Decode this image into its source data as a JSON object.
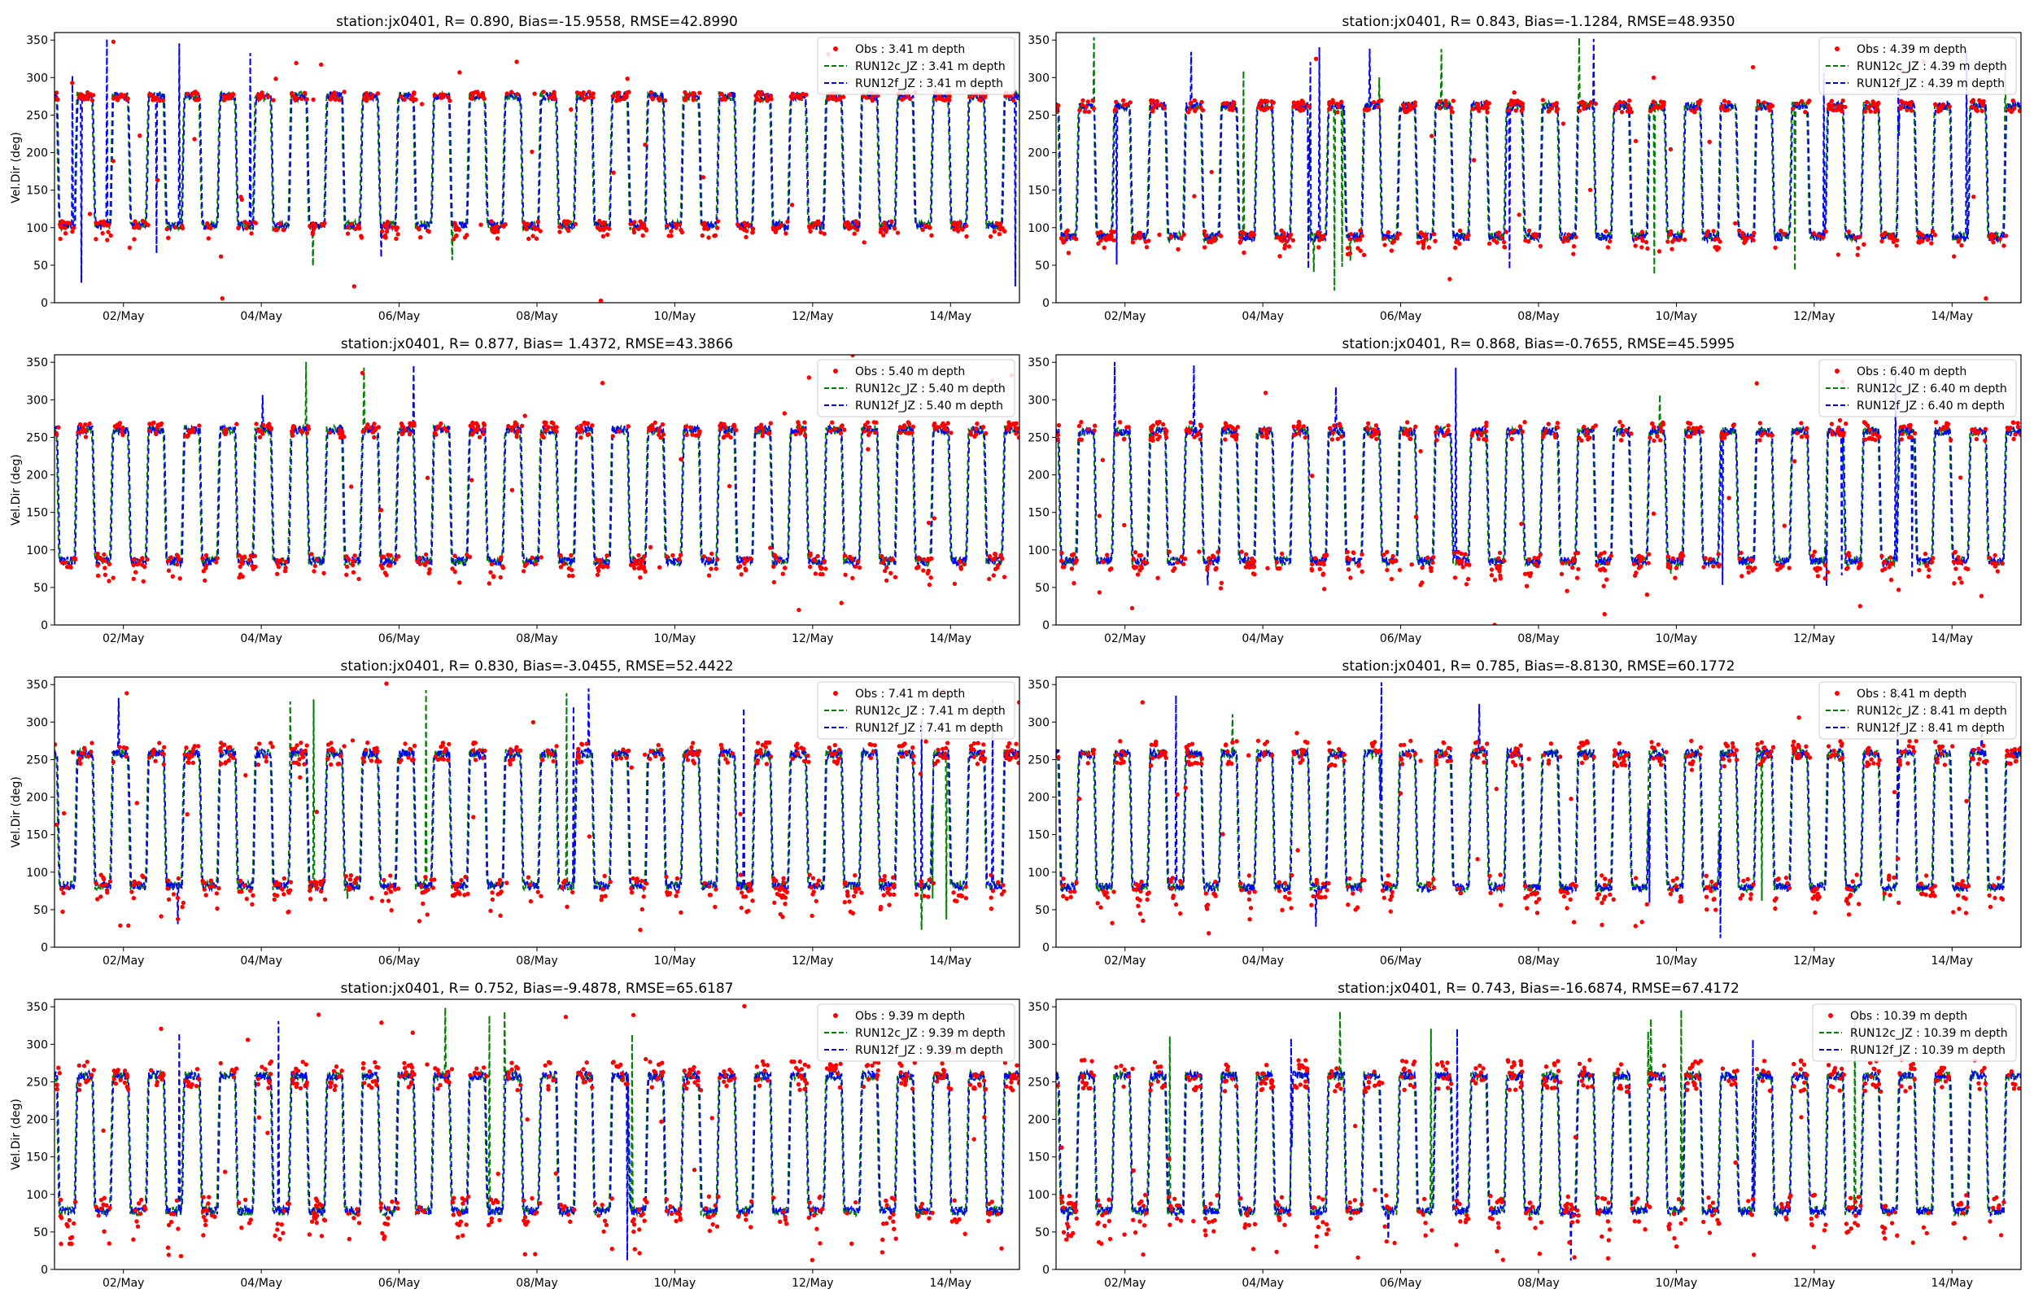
{
  "figure": {
    "background": "#ffffff"
  },
  "colors": {
    "obs": "#ff0000",
    "run12c": "#008000",
    "run12f": "#0000ff",
    "axis": "#000000"
  },
  "chart_data": [
    {
      "type": "line",
      "title": "station:jx0401, R= 0.890, Bias=-15.9558, RMSE=42.8990",
      "ylabel": "Vel.Dir (deg)",
      "xlabel": "",
      "xticks": [
        "02/May",
        "04/May",
        "06/May",
        "08/May",
        "10/May",
        "12/May",
        "14/May"
      ],
      "yticks": [
        0,
        50,
        100,
        150,
        200,
        250,
        300,
        350
      ],
      "x_range_days": [
        1.0,
        15.0
      ],
      "ylim": [
        0,
        360
      ],
      "legend_position": "top-right",
      "grid": false,
      "series": [
        {
          "name": "Obs : 3.41 m depth",
          "kind": "dots"
        },
        {
          "name": "RUN12c_JZ : 3.41 m depth",
          "kind": "dashed"
        },
        {
          "name": "RUN12f_JZ : 3.41 m depth",
          "kind": "dashed"
        }
      ],
      "levels": {
        "high": 275,
        "low": 103
      },
      "seed": 11
    },
    {
      "type": "line",
      "title": "station:jx0401, R= 0.843, Bias=-1.1284, RMSE=48.9350",
      "ylabel": "",
      "xlabel": "",
      "xticks": [
        "02/May",
        "04/May",
        "06/May",
        "08/May",
        "10/May",
        "12/May",
        "14/May"
      ],
      "yticks": [
        0,
        50,
        100,
        150,
        200,
        250,
        300,
        350
      ],
      "x_range_days": [
        1.0,
        15.0
      ],
      "ylim": [
        0,
        360
      ],
      "legend_position": "top-right",
      "grid": false,
      "series": [
        {
          "name": "Obs : 4.39 m depth",
          "kind": "dots"
        },
        {
          "name": "RUN12c_JZ : 4.39 m depth",
          "kind": "dashed"
        },
        {
          "name": "RUN12f_JZ : 4.39 m depth",
          "kind": "dashed"
        }
      ],
      "levels": {
        "high": 262,
        "low": 88
      },
      "seed": 23
    },
    {
      "type": "line",
      "title": "station:jx0401, R= 0.877, Bias= 1.4372, RMSE=43.3866",
      "ylabel": "Vel.Dir (deg)",
      "xlabel": "",
      "xticks": [
        "02/May",
        "04/May",
        "06/May",
        "08/May",
        "10/May",
        "12/May",
        "14/May"
      ],
      "yticks": [
        0,
        50,
        100,
        150,
        200,
        250,
        300,
        350
      ],
      "x_range_days": [
        1.0,
        15.0
      ],
      "ylim": [
        0,
        360
      ],
      "legend_position": "top-right",
      "grid": false,
      "series": [
        {
          "name": "Obs : 5.40 m depth",
          "kind": "dots"
        },
        {
          "name": "RUN12c_JZ : 5.40 m depth",
          "kind": "dashed"
        },
        {
          "name": "RUN12f_JZ : 5.40 m depth",
          "kind": "dashed"
        }
      ],
      "levels": {
        "high": 260,
        "low": 85
      },
      "seed": 37
    },
    {
      "type": "line",
      "title": "station:jx0401, R= 0.868, Bias=-0.7655, RMSE=45.5995",
      "ylabel": "",
      "xlabel": "",
      "xticks": [
        "02/May",
        "04/May",
        "06/May",
        "08/May",
        "10/May",
        "12/May",
        "14/May"
      ],
      "yticks": [
        0,
        50,
        100,
        150,
        200,
        250,
        300,
        350
      ],
      "x_range_days": [
        1.0,
        15.0
      ],
      "ylim": [
        0,
        360
      ],
      "legend_position": "top-right",
      "grid": false,
      "series": [
        {
          "name": "Obs : 6.40 m depth",
          "kind": "dots"
        },
        {
          "name": "RUN12c_JZ : 6.40 m depth",
          "kind": "dashed"
        },
        {
          "name": "RUN12f_JZ : 6.40 m depth",
          "kind": "dashed"
        }
      ],
      "levels": {
        "high": 258,
        "low": 85
      },
      "seed": 41
    },
    {
      "type": "line",
      "title": "station:jx0401, R= 0.830, Bias=-3.0455, RMSE=52.4422",
      "ylabel": "Vel.Dir (deg)",
      "xlabel": "",
      "xticks": [
        "02/May",
        "04/May",
        "06/May",
        "08/May",
        "10/May",
        "12/May",
        "14/May"
      ],
      "yticks": [
        0,
        50,
        100,
        150,
        200,
        250,
        300,
        350
      ],
      "x_range_days": [
        1.0,
        15.0
      ],
      "ylim": [
        0,
        360
      ],
      "legend_position": "top-right",
      "grid": false,
      "series": [
        {
          "name": "Obs : 7.41 m depth",
          "kind": "dots"
        },
        {
          "name": "RUN12c_JZ : 7.41 m depth",
          "kind": "dashed"
        },
        {
          "name": "RUN12f_JZ : 7.41 m depth",
          "kind": "dashed"
        }
      ],
      "levels": {
        "high": 258,
        "low": 82
      },
      "seed": 53
    },
    {
      "type": "line",
      "title": "station:jx0401, R= 0.785, Bias=-8.8130, RMSE=60.1772",
      "ylabel": "",
      "xlabel": "",
      "xticks": [
        "02/May",
        "04/May",
        "06/May",
        "08/May",
        "10/May",
        "12/May",
        "14/May"
      ],
      "yticks": [
        0,
        50,
        100,
        150,
        200,
        250,
        300,
        350
      ],
      "x_range_days": [
        1.0,
        15.0
      ],
      "ylim": [
        0,
        360
      ],
      "legend_position": "top-right",
      "grid": false,
      "series": [
        {
          "name": "Obs : 8.41 m depth",
          "kind": "dots"
        },
        {
          "name": "RUN12c_JZ : 8.41 m depth",
          "kind": "dashed"
        },
        {
          "name": "RUN12f_JZ : 8.41 m depth",
          "kind": "dashed"
        }
      ],
      "levels": {
        "high": 258,
        "low": 80
      },
      "seed": 67
    },
    {
      "type": "line",
      "title": "station:jx0401, R= 0.752, Bias=-9.4878, RMSE=65.6187",
      "ylabel": "Vel.Dir (deg)",
      "xlabel": "",
      "xticks": [
        "02/May",
        "04/May",
        "06/May",
        "08/May",
        "10/May",
        "12/May",
        "14/May"
      ],
      "yticks": [
        0,
        50,
        100,
        150,
        200,
        250,
        300,
        350
      ],
      "x_range_days": [
        1.0,
        15.0
      ],
      "ylim": [
        0,
        360
      ],
      "legend_position": "top-right",
      "grid": false,
      "series": [
        {
          "name": "Obs : 9.39 m depth",
          "kind": "dots"
        },
        {
          "name": "RUN12c_JZ : 9.39 m depth",
          "kind": "dashed"
        },
        {
          "name": "RUN12f_JZ : 9.39 m depth",
          "kind": "dashed"
        }
      ],
      "levels": {
        "high": 258,
        "low": 78
      },
      "seed": 79
    },
    {
      "type": "line",
      "title": "station:jx0401, R= 0.743, Bias=-16.6874, RMSE=67.4172",
      "ylabel": "",
      "xlabel": "",
      "xticks": [
        "02/May",
        "04/May",
        "06/May",
        "08/May",
        "10/May",
        "12/May",
        "14/May"
      ],
      "yticks": [
        0,
        50,
        100,
        150,
        200,
        250,
        300,
        350
      ],
      "x_range_days": [
        1.0,
        15.0
      ],
      "ylim": [
        0,
        360
      ],
      "legend_position": "top-right",
      "grid": false,
      "series": [
        {
          "name": "Obs : 10.39 m depth",
          "kind": "dots"
        },
        {
          "name": "RUN12c_JZ : 10.39 m depth",
          "kind": "dashed"
        },
        {
          "name": "RUN12f_JZ : 10.39 m depth",
          "kind": "dashed"
        }
      ],
      "levels": {
        "high": 258,
        "low": 78
      },
      "seed": 97
    }
  ]
}
